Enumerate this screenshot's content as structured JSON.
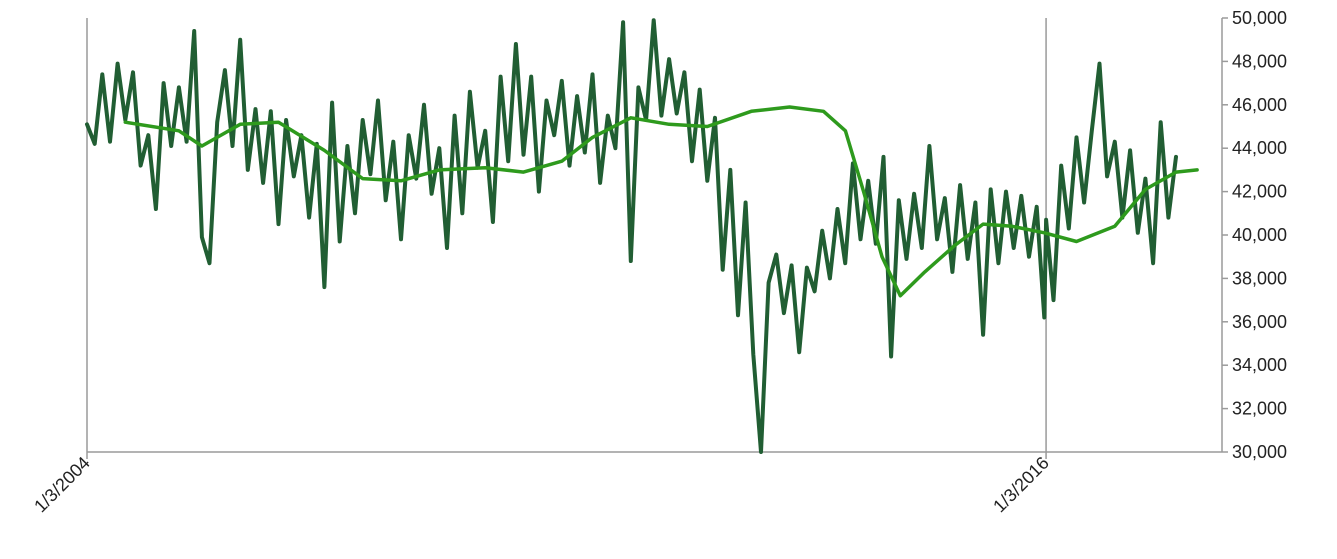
{
  "chart_data": {
    "type": "line",
    "x_tick_labels": [
      "1/3/2004",
      "1/3/2016"
    ],
    "xlim": [
      "2004-01-03",
      "2018-03-17"
    ],
    "ylim": [
      30000,
      50000
    ],
    "y_ticks": [
      30000,
      32000,
      34000,
      36000,
      38000,
      40000,
      42000,
      44000,
      46000,
      48000,
      50000
    ],
    "y_tick_labels": [
      "30,000",
      "32,000",
      "34,000",
      "36,000",
      "38,000",
      "40,000",
      "42,000",
      "44,000",
      "46,000",
      "48,000",
      "50,000"
    ],
    "y_axis_position": "right",
    "vertical_gridlines": [
      "2004-01-03",
      "2016-01-03"
    ],
    "horizontal_grid": false,
    "legend": "none",
    "series": [
      {
        "style": "weekly",
        "color": "#215e33",
        "points": [
          [
            "2004-01-03",
            45100
          ],
          [
            "2004-02-07",
            44200
          ],
          [
            "2004-03-13",
            47400
          ],
          [
            "2004-04-17",
            44300
          ],
          [
            "2004-05-22",
            47900
          ],
          [
            "2004-06-26",
            45300
          ],
          [
            "2004-07-31",
            47500
          ],
          [
            "2004-09-04",
            43200
          ],
          [
            "2004-10-09",
            44600
          ],
          [
            "2004-11-13",
            41200
          ],
          [
            "2004-12-18",
            47000
          ],
          [
            "2005-01-22",
            44100
          ],
          [
            "2005-02-26",
            46800
          ],
          [
            "2005-04-02",
            44300
          ],
          [
            "2005-05-07",
            49400
          ],
          [
            "2005-06-11",
            39900
          ],
          [
            "2005-07-16",
            38700
          ],
          [
            "2005-08-20",
            45200
          ],
          [
            "2005-09-24",
            47600
          ],
          [
            "2005-10-29",
            44100
          ],
          [
            "2005-12-03",
            49000
          ],
          [
            "2006-01-07",
            43000
          ],
          [
            "2006-02-11",
            45800
          ],
          [
            "2006-03-18",
            42400
          ],
          [
            "2006-04-22",
            45700
          ],
          [
            "2006-05-27",
            40500
          ],
          [
            "2006-07-01",
            45300
          ],
          [
            "2006-08-05",
            42700
          ],
          [
            "2006-09-09",
            44600
          ],
          [
            "2006-10-14",
            40800
          ],
          [
            "2006-11-18",
            44200
          ],
          [
            "2006-12-23",
            37600
          ],
          [
            "2007-01-27",
            46100
          ],
          [
            "2007-03-03",
            39700
          ],
          [
            "2007-04-07",
            44100
          ],
          [
            "2007-05-12",
            41000
          ],
          [
            "2007-06-16",
            45300
          ],
          [
            "2007-07-21",
            42800
          ],
          [
            "2007-08-25",
            46200
          ],
          [
            "2007-09-29",
            41600
          ],
          [
            "2007-11-03",
            44300
          ],
          [
            "2007-12-08",
            39800
          ],
          [
            "2008-01-12",
            44600
          ],
          [
            "2008-02-16",
            42600
          ],
          [
            "2008-03-22",
            46000
          ],
          [
            "2008-04-26",
            41900
          ],
          [
            "2008-05-31",
            44000
          ],
          [
            "2008-07-05",
            39400
          ],
          [
            "2008-08-09",
            45500
          ],
          [
            "2008-09-13",
            41000
          ],
          [
            "2008-10-18",
            46600
          ],
          [
            "2008-11-22",
            43100
          ],
          [
            "2008-12-27",
            44800
          ],
          [
            "2009-01-31",
            40600
          ],
          [
            "2009-03-07",
            47300
          ],
          [
            "2009-04-11",
            43400
          ],
          [
            "2009-05-16",
            48800
          ],
          [
            "2009-06-20",
            43700
          ],
          [
            "2009-07-25",
            47300
          ],
          [
            "2009-08-29",
            42000
          ],
          [
            "2009-10-03",
            46200
          ],
          [
            "2009-11-07",
            44600
          ],
          [
            "2009-12-12",
            47100
          ],
          [
            "2010-01-16",
            43200
          ],
          [
            "2010-02-20",
            46400
          ],
          [
            "2010-03-27",
            43800
          ],
          [
            "2010-05-01",
            47400
          ],
          [
            "2010-06-05",
            42400
          ],
          [
            "2010-07-10",
            45500
          ],
          [
            "2010-08-14",
            44000
          ],
          [
            "2010-09-18",
            49800
          ],
          [
            "2010-10-23",
            38800
          ],
          [
            "2010-11-27",
            46800
          ],
          [
            "2011-01-01",
            45300
          ],
          [
            "2011-02-05",
            49900
          ],
          [
            "2011-03-12",
            45500
          ],
          [
            "2011-04-16",
            48100
          ],
          [
            "2011-05-21",
            45600
          ],
          [
            "2011-06-25",
            47500
          ],
          [
            "2011-07-30",
            43400
          ],
          [
            "2011-09-03",
            46700
          ],
          [
            "2011-10-08",
            42500
          ],
          [
            "2011-11-12",
            45400
          ],
          [
            "2011-12-17",
            38400
          ],
          [
            "2012-01-21",
            43000
          ],
          [
            "2012-02-25",
            36300
          ],
          [
            "2012-03-31",
            41500
          ],
          [
            "2012-05-05",
            34500
          ],
          [
            "2012-06-09",
            30000
          ],
          [
            "2012-07-14",
            37800
          ],
          [
            "2012-08-18",
            39100
          ],
          [
            "2012-09-22",
            36400
          ],
          [
            "2012-10-27",
            38600
          ],
          [
            "2012-12-01",
            34600
          ],
          [
            "2013-01-05",
            38500
          ],
          [
            "2013-02-09",
            37400
          ],
          [
            "2013-03-16",
            40200
          ],
          [
            "2013-04-20",
            38000
          ],
          [
            "2013-05-25",
            41200
          ],
          [
            "2013-06-29",
            38700
          ],
          [
            "2013-08-03",
            43300
          ],
          [
            "2013-09-07",
            39800
          ],
          [
            "2013-10-12",
            42500
          ],
          [
            "2013-11-16",
            39600
          ],
          [
            "2013-12-21",
            43600
          ],
          [
            "2014-01-25",
            34400
          ],
          [
            "2014-03-01",
            41600
          ],
          [
            "2014-04-05",
            38900
          ],
          [
            "2014-05-10",
            41900
          ],
          [
            "2014-06-14",
            39400
          ],
          [
            "2014-07-19",
            44100
          ],
          [
            "2014-08-23",
            39800
          ],
          [
            "2014-09-27",
            41700
          ],
          [
            "2014-11-01",
            38300
          ],
          [
            "2014-12-06",
            42300
          ],
          [
            "2015-01-10",
            38900
          ],
          [
            "2015-02-14",
            41500
          ],
          [
            "2015-03-21",
            35400
          ],
          [
            "2015-04-25",
            42100
          ],
          [
            "2015-05-30",
            38700
          ],
          [
            "2015-07-04",
            42000
          ],
          [
            "2015-08-08",
            39400
          ],
          [
            "2015-09-12",
            41800
          ],
          [
            "2015-10-17",
            39000
          ],
          [
            "2015-11-21",
            41300
          ],
          [
            "2015-12-26",
            36200
          ],
          [
            "2016-01-03",
            40700
          ],
          [
            "2016-02-06",
            37000
          ],
          [
            "2016-03-12",
            43200
          ],
          [
            "2016-04-16",
            40300
          ],
          [
            "2016-05-21",
            44500
          ],
          [
            "2016-06-25",
            41500
          ],
          [
            "2016-07-30",
            44800
          ],
          [
            "2016-09-03",
            47900
          ],
          [
            "2016-10-08",
            42700
          ],
          [
            "2016-11-12",
            44300
          ],
          [
            "2016-12-17",
            40800
          ],
          [
            "2017-01-21",
            43900
          ],
          [
            "2017-02-25",
            40100
          ],
          [
            "2017-04-01",
            42600
          ],
          [
            "2017-05-06",
            38700
          ],
          [
            "2017-06-10",
            45200
          ],
          [
            "2017-07-15",
            40800
          ],
          [
            "2017-08-19",
            43600
          ]
        ]
      },
      {
        "style": "moving-average",
        "color": "#2e9a1d",
        "points": [
          [
            "2004-06-26",
            45200
          ],
          [
            "2005-02-26",
            44800
          ],
          [
            "2005-06-11",
            44100
          ],
          [
            "2005-12-03",
            45100
          ],
          [
            "2006-05-27",
            45200
          ],
          [
            "2006-12-23",
            43900
          ],
          [
            "2007-06-16",
            42600
          ],
          [
            "2007-12-08",
            42500
          ],
          [
            "2008-05-31",
            43000
          ],
          [
            "2008-12-27",
            43100
          ],
          [
            "2009-06-20",
            42900
          ],
          [
            "2009-12-12",
            43400
          ],
          [
            "2010-05-01",
            44500
          ],
          [
            "2010-10-23",
            45400
          ],
          [
            "2011-04-16",
            45100
          ],
          [
            "2011-10-08",
            45000
          ],
          [
            "2012-04-26",
            45700
          ],
          [
            "2012-10-18",
            45900
          ],
          [
            "2013-03-22",
            45700
          ],
          [
            "2013-06-30",
            44800
          ],
          [
            "2013-09-21",
            42000
          ],
          [
            "2013-12-14",
            39000
          ],
          [
            "2014-03-08",
            37200
          ],
          [
            "2014-06-28",
            38300
          ],
          [
            "2014-11-09",
            39500
          ],
          [
            "2015-03-21",
            40500
          ],
          [
            "2015-08-01",
            40400
          ],
          [
            "2015-12-26",
            40100
          ],
          [
            "2016-05-21",
            39700
          ],
          [
            "2016-11-12",
            40400
          ],
          [
            "2017-04-01",
            42100
          ],
          [
            "2017-08-19",
            42900
          ],
          [
            "2017-11-23",
            43000
          ]
        ]
      }
    ]
  }
}
